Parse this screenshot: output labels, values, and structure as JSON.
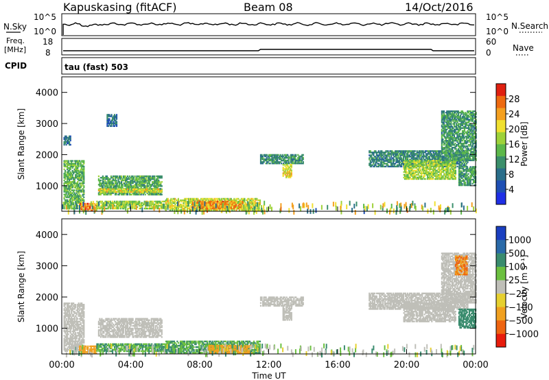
{
  "header": {
    "station": "Kapuskasing (fitACF)",
    "beam": "Beam 08",
    "date": "14/Oct/2016"
  },
  "top_panels": {
    "nsky": {
      "label": "N.Sky",
      "ticks": [
        "10^5",
        "10^0"
      ]
    },
    "nsearch": {
      "label": "N.Search",
      "ticks": [
        "10^5",
        "10^0"
      ]
    },
    "freq": {
      "label_line1": "Freq.",
      "label_line2": "[MHz]",
      "ticks": [
        "18",
        "8"
      ]
    },
    "nave": {
      "label": "Nave",
      "ticks": [
        "60",
        "0"
      ]
    },
    "cpid": {
      "label": "CPID",
      "text": "tau (fast) 503"
    }
  },
  "colors": {
    "power_scale": [
      "#1f2fe6",
      "#1e4fb4",
      "#2a6e8a",
      "#3b8f6b",
      "#5db84a",
      "#9ed23a",
      "#f0e030",
      "#f4a020",
      "#ee6a10",
      "#e02010"
    ],
    "velocity_scale": [
      "#1a3fc0",
      "#2a6aa8",
      "#3a8c6e",
      "#6cc040",
      "#bfbfb8",
      "#e6d030",
      "#f0a020",
      "#ee6410",
      "#e81c0c"
    ]
  },
  "chart_data": [
    {
      "type": "heatmap",
      "name": "power",
      "ylabel": "Slant Range [km]",
      "xlim": [
        "00:00",
        "24:00"
      ],
      "ylim": [
        180,
        4500
      ],
      "x_ticks": [
        "00:00",
        "04:00",
        "08:00",
        "12:00",
        "16:00",
        "20:00",
        "00:00"
      ],
      "y_ticks": [
        1000,
        2000,
        3000,
        4000
      ],
      "colorbar": {
        "label": "Power [dB]",
        "range": [
          0,
          32
        ],
        "ticks": [
          4,
          8,
          12,
          16,
          20,
          24,
          28
        ]
      },
      "regions": [
        {
          "t0": 0.1,
          "t1": 1.3,
          "r0": 250,
          "r1": 1800,
          "v": 14
        },
        {
          "t0": 1.0,
          "t1": 2.0,
          "r0": 180,
          "r1": 450,
          "v": 26
        },
        {
          "t0": 2.1,
          "t1": 5.8,
          "r0": 700,
          "r1": 1300,
          "v": 13
        },
        {
          "t0": 2.1,
          "t1": 5.8,
          "r0": 780,
          "r1": 880,
          "v": 20
        },
        {
          "t0": 2.0,
          "t1": 6.0,
          "r0": 250,
          "r1": 500,
          "v": 17
        },
        {
          "t0": 6.0,
          "t1": 11.5,
          "r0": 200,
          "r1": 600,
          "v": 19
        },
        {
          "t0": 7.5,
          "t1": 10.5,
          "r0": 250,
          "r1": 500,
          "v": 25
        },
        {
          "t0": 11.5,
          "t1": 14.0,
          "r0": 1700,
          "r1": 2000,
          "v": 11
        },
        {
          "t0": 12.8,
          "t1": 13.3,
          "r0": 1250,
          "r1": 1700,
          "v": 21
        },
        {
          "t0": 17.8,
          "t1": 23.5,
          "r0": 1600,
          "r1": 2100,
          "v": 10
        },
        {
          "t0": 19.8,
          "t1": 22.8,
          "r0": 1200,
          "r1": 1800,
          "v": 17
        },
        {
          "t0": 22.0,
          "t1": 24.0,
          "r0": 1800,
          "r1": 3400,
          "v": 12
        },
        {
          "t0": 23.0,
          "t1": 24.0,
          "r0": 1000,
          "r1": 1600,
          "v": 12
        },
        {
          "t0": 2.6,
          "t1": 3.2,
          "r0": 2900,
          "r1": 3300,
          "v": 8
        },
        {
          "t0": 0.1,
          "t1": 0.5,
          "r0": 2300,
          "r1": 2600,
          "v": 9
        }
      ]
    },
    {
      "type": "heatmap",
      "name": "velocity",
      "ylabel": "Slant Range [km]",
      "xlabel": "Time UT",
      "xlim": [
        "00:00",
        "24:00"
      ],
      "ylim": [
        180,
        4500
      ],
      "x_ticks": [
        "00:00",
        "04:00",
        "08:00",
        "12:00",
        "16:00",
        "20:00",
        "00:00"
      ],
      "y_ticks": [
        1000,
        2000,
        3000,
        4000
      ],
      "colorbar": {
        "label": "Velocity [m s⁻¹]",
        "ticks": [
          "1000",
          "500",
          "100",
          "25",
          "−25",
          "−100",
          "−500",
          "−1000"
        ]
      },
      "regions": [
        {
          "t0": 0.1,
          "t1": 1.3,
          "r0": 250,
          "r1": 1800,
          "v": 0
        },
        {
          "t0": 1.0,
          "t1": 2.0,
          "r0": 180,
          "r1": 450,
          "v": -80
        },
        {
          "t0": 2.1,
          "t1": 5.8,
          "r0": 700,
          "r1": 1300,
          "v": 0
        },
        {
          "t0": 2.0,
          "t1": 6.0,
          "r0": 250,
          "r1": 500,
          "v": 60
        },
        {
          "t0": 6.0,
          "t1": 11.5,
          "r0": 200,
          "r1": 600,
          "v": 60
        },
        {
          "t0": 8.5,
          "t1": 11.0,
          "r0": 200,
          "r1": 450,
          "v": -150
        },
        {
          "t0": 11.5,
          "t1": 14.0,
          "r0": 1700,
          "r1": 2000,
          "v": 0
        },
        {
          "t0": 12.8,
          "t1": 13.3,
          "r0": 1250,
          "r1": 1700,
          "v": 0
        },
        {
          "t0": 17.8,
          "t1": 23.5,
          "r0": 1600,
          "r1": 2100,
          "v": 0
        },
        {
          "t0": 19.8,
          "t1": 22.8,
          "r0": 1200,
          "r1": 1800,
          "v": 0
        },
        {
          "t0": 22.0,
          "t1": 24.0,
          "r0": 1800,
          "r1": 3400,
          "v": 0
        },
        {
          "t0": 23.0,
          "t1": 24.0,
          "r0": 1000,
          "r1": 1600,
          "v": 80
        },
        {
          "t0": 22.8,
          "t1": 23.5,
          "r0": 2700,
          "r1": 3300,
          "v": -300
        }
      ]
    }
  ]
}
